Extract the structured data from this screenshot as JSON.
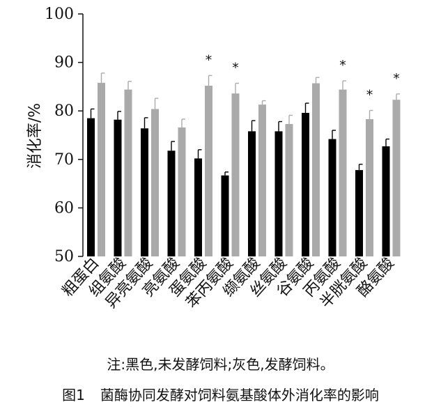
{
  "chart_data": {
    "type": "bar",
    "categories": [
      "粗蛋白",
      "组氨酸",
      "异亮氨酸",
      "亮氨酸",
      "蛋氨酸",
      "苯丙氨酸",
      "缬氨酸",
      "丝氨酸",
      "谷氨酸",
      "丙氨酸",
      "半胱氨酸",
      "酪氨酸"
    ],
    "series": [
      {
        "color": "#000000",
        "values": [
          78.5,
          78.2,
          76.4,
          71.8,
          70.2,
          66.7,
          75.8,
          75.8,
          79.6,
          74.2,
          67.8,
          72.7
        ],
        "errors": [
          1.9,
          1.7,
          2.2,
          1.9,
          1.8,
          0.7,
          2.2,
          2.0,
          2.0,
          1.8,
          1.2,
          1.5
        ]
      },
      {
        "color": "#aaaaaa",
        "values": [
          85.8,
          84.4,
          80.4,
          76.6,
          85.2,
          83.6,
          81.3,
          77.3,
          85.7,
          84.4,
          78.3,
          82.3
        ],
        "errors": [
          2.0,
          1.7,
          2.2,
          1.7,
          2.1,
          2.1,
          0.8,
          1.8,
          1.2,
          1.8,
          1.8,
          1.2
        ]
      }
    ],
    "significant": [
      false,
      false,
      false,
      false,
      true,
      true,
      false,
      false,
      false,
      true,
      true,
      true
    ],
    "significance_symbol": "*",
    "ylabel": "消化率/%",
    "ylim": [
      50,
      100
    ],
    "yticks": [
      50,
      60,
      70,
      80,
      90,
      100
    ],
    "grid": false,
    "legend": "none"
  },
  "note": "注:黑色,未发酵饲料;灰色,发酵饲料。",
  "caption": {
    "number": "图1",
    "title": "菌酶协同发酵对饲料氨基酸体外消化率的影响"
  }
}
